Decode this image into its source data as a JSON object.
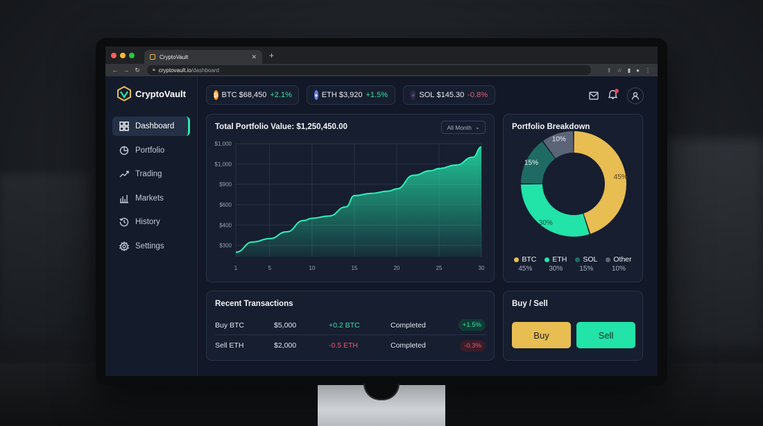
{
  "browser": {
    "tab_title": "CryptoVault",
    "url_host": "cryptovault.io",
    "url_path": "/dashboard"
  },
  "app": {
    "name": "CryptoVault",
    "nav": [
      {
        "label": "Dashboard",
        "icon": "grid-icon",
        "active": true
      },
      {
        "label": "Portfolio",
        "icon": "pie-icon"
      },
      {
        "label": "Trading",
        "icon": "trend-icon"
      },
      {
        "label": "Markets",
        "icon": "bars-icon"
      },
      {
        "label": "History",
        "icon": "history-icon"
      },
      {
        "label": "Settings",
        "icon": "gear-icon"
      }
    ]
  },
  "tickers": [
    {
      "symbol": "BTC",
      "price": "$68,450",
      "change": "+2.1%",
      "color": "#f7931a"
    },
    {
      "symbol": "ETH",
      "price": "$3,920",
      "change": "+1.5%",
      "color": "#627eea"
    },
    {
      "symbol": "SOL",
      "price": "$145.30",
      "change": "-0.8%",
      "color": "#9945ff"
    }
  ],
  "portfolio_chart": {
    "title": "Total Portfolio Value: $1,250,450.00",
    "range_select": "All Month"
  },
  "breakdown": {
    "title": "Portfolio Breakdown",
    "segments": [
      {
        "name": "BTC",
        "percent": "45%",
        "value": 45,
        "color": "#e8bd52"
      },
      {
        "name": "ETH",
        "percent": "30%",
        "value": 30,
        "color": "#22e3a8"
      },
      {
        "name": "SOL",
        "percent": "15%",
        "value": 15,
        "color": "#1f6b63"
      },
      {
        "name": "Other",
        "percent": "10%",
        "value": 10,
        "color": "#5c6478"
      }
    ]
  },
  "transactions": {
    "title": "Recent Transactions",
    "rows": [
      {
        "type": "Buy BTC",
        "amount": "$5,000",
        "crypto": "+0.2 BTC",
        "status": "Completed",
        "change": "+1.5%",
        "direction": "up"
      },
      {
        "type": "Sell ETH",
        "amount": "$2,000",
        "crypto": "-0.5 ETH",
        "status": "Completed",
        "change": "-0.3%",
        "direction": "down"
      }
    ]
  },
  "trade": {
    "title": "Buy / Sell",
    "buy_label": "Buy",
    "sell_label": "Sell"
  },
  "chart_data": {
    "type": "area",
    "title": "Total Portfolio Value: $1,250,450.00",
    "x_ticks": [
      "1",
      "5",
      "10",
      "15",
      "20",
      "25",
      "30"
    ],
    "y_ticks": [
      "$1,000",
      "$1,000",
      "$900",
      "$600",
      "$400",
      "$300"
    ],
    "x": [
      1,
      3,
      5,
      7,
      9,
      10,
      12,
      14,
      15,
      17,
      19,
      20,
      22,
      24,
      25,
      27,
      29,
      30
    ],
    "values": [
      240,
      330,
      360,
      420,
      520,
      540,
      560,
      640,
      740,
      760,
      780,
      800,
      920,
      960,
      980,
      1010,
      1080,
      1170
    ],
    "ylim": [
      200,
      1200
    ],
    "grid": true
  }
}
